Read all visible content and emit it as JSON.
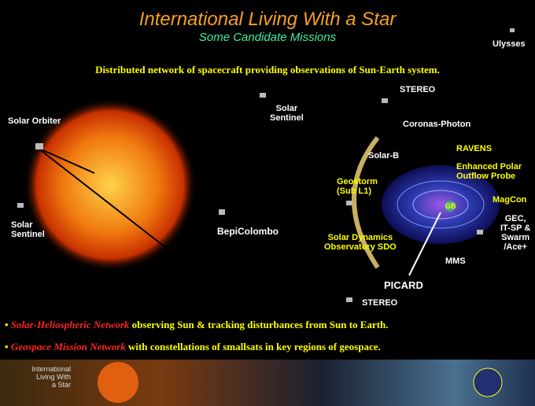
{
  "header": {
    "title": "International Living With  a Star",
    "subtitle": "Some Candidate Missions",
    "tagline": "Distributed network of spacecraft providing observations of Sun-Earth system."
  },
  "labels": [
    "Ulysses",
    "STEREO",
    "Solar\nSentinel",
    "Solar Orbiter",
    "Coronas-Photon",
    "Solar-B",
    "RAVENS",
    "Enhanced Polar\nOutflow Probe",
    "Geostorm\n(Sub L1)",
    "MagCon",
    "GEC,\nIT-SP &\nSwarm\n/Ace+",
    "GB",
    "Solar\nSentinel",
    "BepiColombo",
    "Solar Dynamics\nObservatory SDO",
    "MMS",
    "PICARD",
    "STEREO"
  ],
  "bullets": [
    {
      "highlight": "Solar-Heliospheric Network",
      "text": " observing Sun & tracking disturbances from Sun to Earth."
    },
    {
      "highlight": "Geospace Mission Network",
      "text": " with constellations of smallsats in key regions of geospace."
    }
  ],
  "banner": {
    "text": "International\nLiving With\na Star"
  }
}
